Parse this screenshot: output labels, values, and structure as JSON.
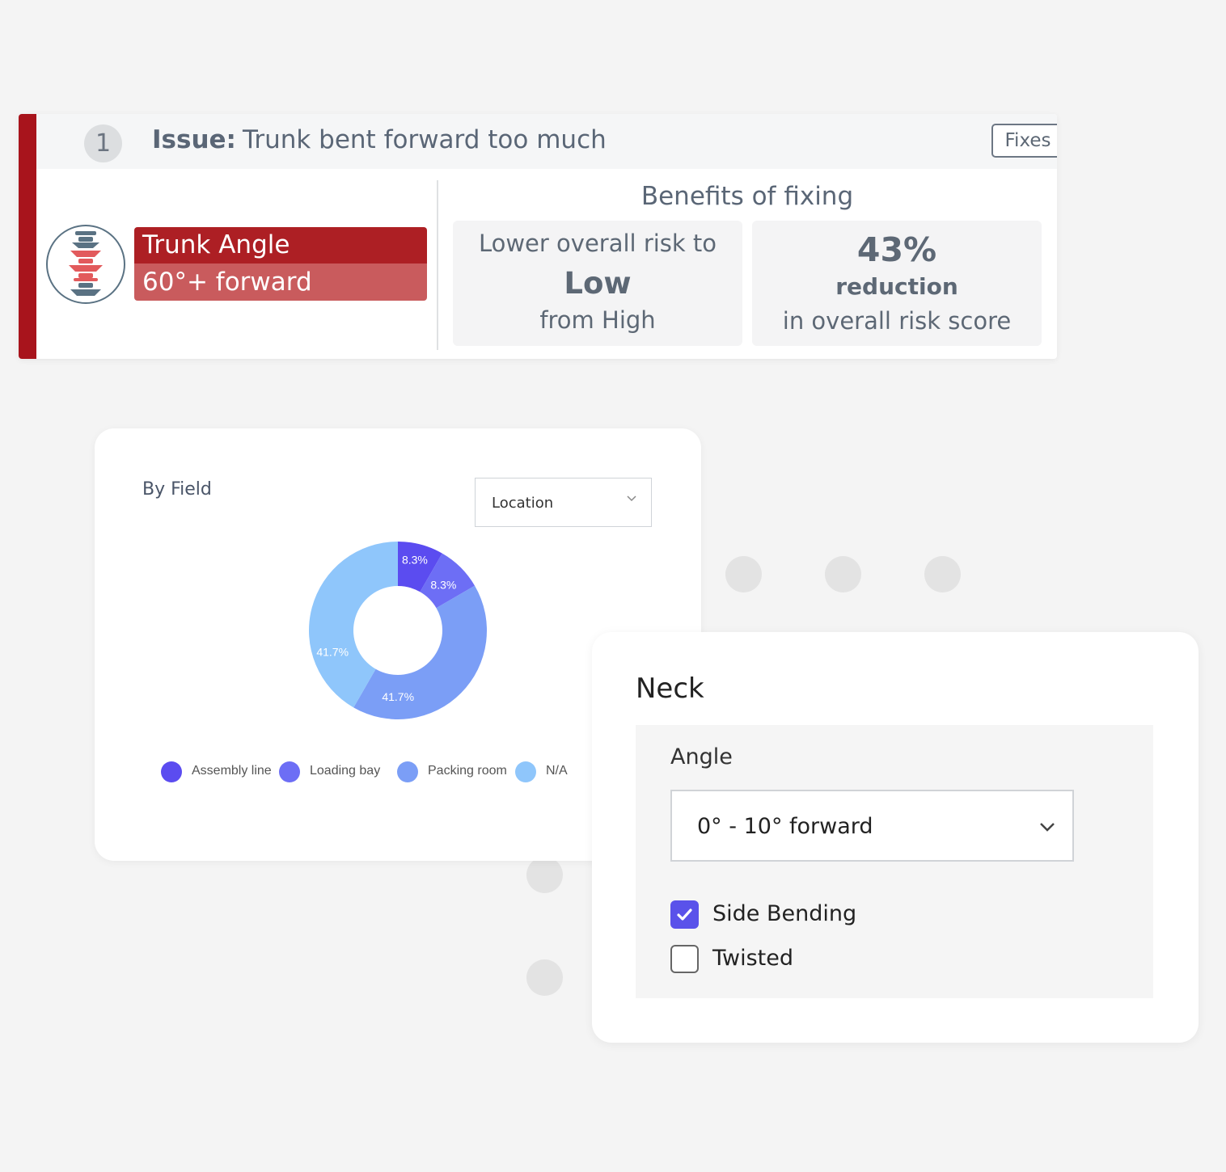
{
  "issue": {
    "number": "1",
    "label": "Issue:",
    "title": "Trunk bent forward too much",
    "fixes_label": "Fixes",
    "posture_name": "Trunk Angle",
    "posture_value": "60°+ forward",
    "benefits_title": "Benefits of fixing",
    "benefit1": {
      "line1": "Lower overall risk to",
      "line2": "Low",
      "line3": "from High"
    },
    "benefit2": {
      "line1": "43%",
      "line2": "reduction",
      "line3": "in overall risk score"
    }
  },
  "pie_card": {
    "title": "By Field",
    "select_value": "Location",
    "colors": {
      "assembly": "#5b4cf0",
      "loading": "#6d6ef5",
      "packing": "#7b9ef6",
      "na": "#8fc6fb"
    }
  },
  "chart_data": {
    "type": "pie",
    "series": [
      {
        "name": "Assembly line",
        "value": 8.3,
        "label": "8.3%"
      },
      {
        "name": "Loading bay",
        "value": 8.3,
        "label": "8.3%"
      },
      {
        "name": "Packing room",
        "value": 41.7,
        "label": "41.7%"
      },
      {
        "name": "N/A",
        "value": 41.7,
        "label": "41.7%"
      }
    ],
    "legend": [
      "Assembly line",
      "Loading bay",
      "Packing room",
      "N/A"
    ],
    "legend_position": "bottom",
    "donut": true
  },
  "neck": {
    "title": "Neck",
    "angle_label": "Angle",
    "angle_value": "0° - 10° forward",
    "checkboxes": [
      {
        "label": "Side Bending",
        "checked": true
      },
      {
        "label": "Twisted",
        "checked": false
      }
    ]
  }
}
